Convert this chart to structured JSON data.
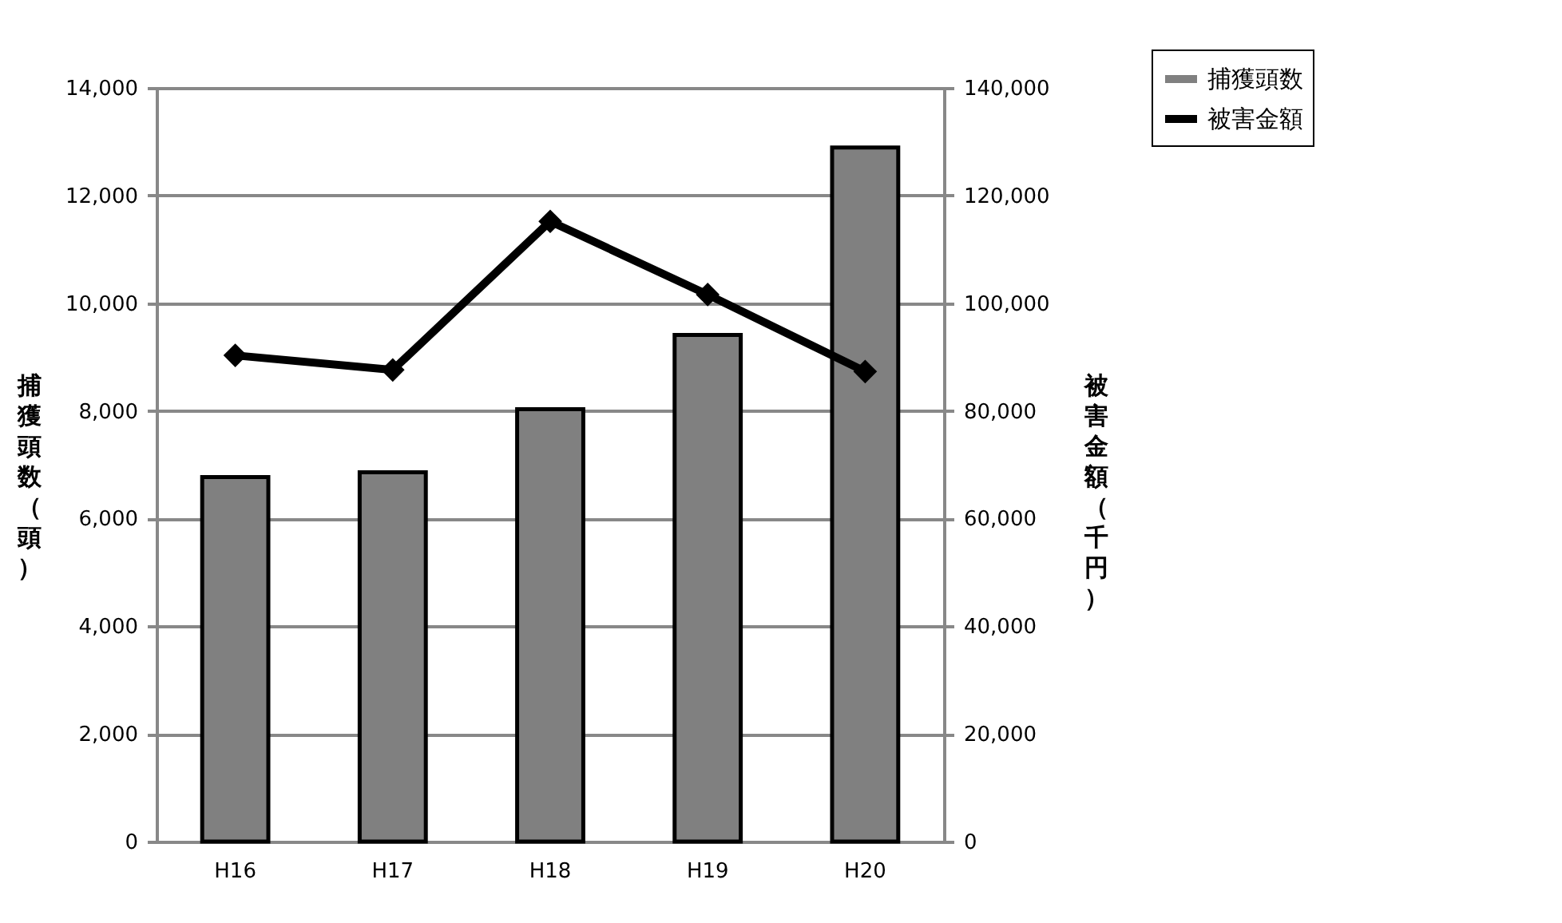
{
  "chart_data": {
    "type": "bar",
    "categories": [
      "H16",
      "H17",
      "H18",
      "H19",
      "H20"
    ],
    "series": [
      {
        "name": "捕獲頭数",
        "color": "#808080",
        "values": [
          6770,
          6860,
          8030,
          9410,
          12890
        ]
      },
      {
        "name": "被害金額",
        "type": "line",
        "axis": "y2",
        "color": "#000000",
        "values": [
          90300,
          87600,
          115200,
          101600,
          87300
        ]
      }
    ],
    "ylabel": "捕獲頭数（頭）",
    "y2label": "被害金額（千円）",
    "ylim": [
      0,
      14000
    ],
    "yticks": [
      0,
      {
        "value": 2000,
        "label": "2,000"
      },
      {
        "value": 4000,
        "label": "4,000"
      },
      {
        "value": 6000,
        "label": "6,000"
      },
      {
        "value": 8000,
        "label": "8,000"
      },
      {
        "value": 10000,
        "label": "10,000"
      },
      {
        "value": 12000,
        "label": "12,000"
      },
      {
        "value": 14000,
        "label": "14,000"
      }
    ],
    "y2lim": [
      0,
      140000
    ],
    "y2ticks": [
      0,
      {
        "value": 20000,
        "label": "20,000"
      },
      {
        "value": 40000,
        "label": "40,000"
      },
      {
        "value": 60000,
        "label": "60,000"
      },
      {
        "value": 80000,
        "label": "80,000"
      },
      {
        "value": 100000,
        "label": "100,000"
      },
      {
        "value": 120000,
        "label": "120,000"
      },
      {
        "value": 140000,
        "label": "140,000"
      }
    ],
    "grid": "y",
    "legend": "top right",
    "marker": "diamond",
    "line_style": "solid"
  }
}
